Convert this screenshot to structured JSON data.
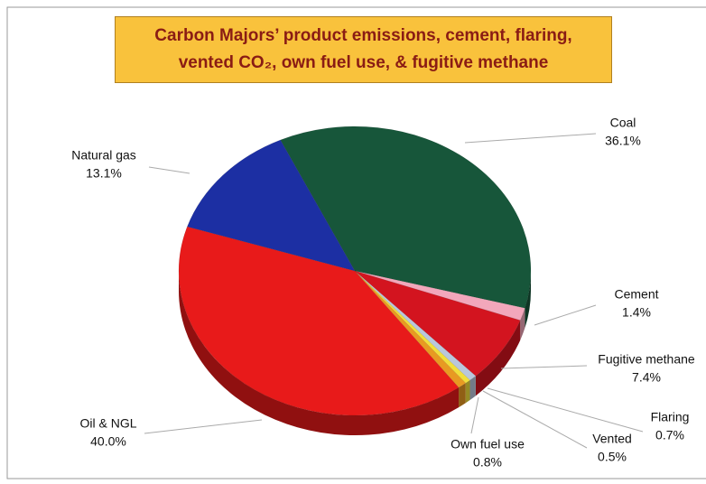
{
  "chart_data": {
    "type": "pie",
    "title": "Carbon Majors’ product emissions, cement, flaring, vented CO₂, own fuel use, & fugitive methane",
    "categories": [
      "Coal",
      "Cement",
      "Fugitive methane",
      "Flaring",
      "Vented",
      "Own fuel use",
      "Oil & NGL",
      "Natural gas"
    ],
    "values": [
      36.1,
      1.4,
      7.4,
      0.7,
      0.5,
      0.8,
      40.0,
      13.1
    ],
    "value_labels": [
      "36.1%",
      "1.4%",
      "7.4%",
      "0.7%",
      "0.5%",
      "0.8%",
      "40.0%",
      "13.1%"
    ],
    "colors": [
      "#17563a",
      "#f2a7bb",
      "#d3141f",
      "#b9c7dc",
      "#f1df3b",
      "#e89a22",
      "#e81a1a",
      "#1c2fa3"
    ]
  }
}
